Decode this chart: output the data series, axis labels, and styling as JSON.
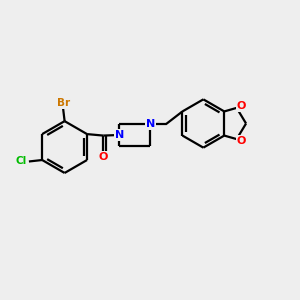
{
  "background_color": "#eeeeee",
  "atom_colors": {
    "Br": "#cc7700",
    "Cl": "#00bb00",
    "N": "#0000ff",
    "O": "#ff0000",
    "C": "#000000",
    "bond": "#000000"
  },
  "figsize": [
    3.0,
    3.0
  ],
  "dpi": 100
}
